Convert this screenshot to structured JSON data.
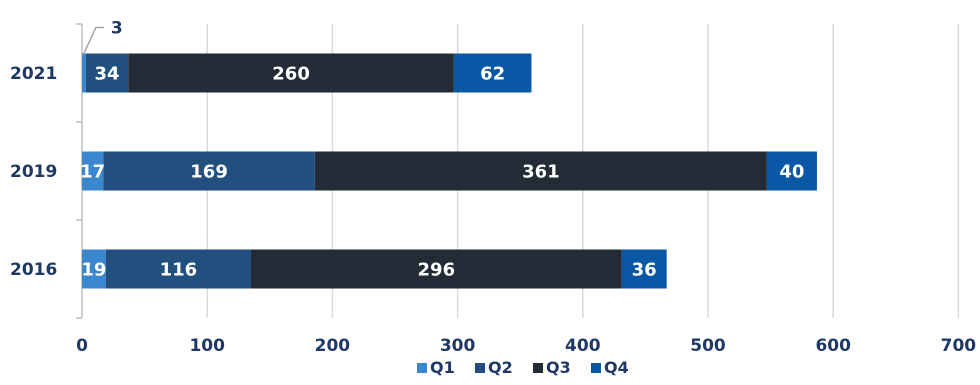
{
  "chart_data": {
    "type": "bar",
    "orientation": "horizontal",
    "stacked": true,
    "categories": [
      "2021",
      "2019",
      "2016"
    ],
    "series": [
      {
        "name": "Q1",
        "color": "#3a86cf",
        "values": [
          3,
          17,
          19
        ]
      },
      {
        "name": "Q2",
        "color": "#22507e",
        "values": [
          34,
          169,
          116
        ]
      },
      {
        "name": "Q3",
        "color": "#232b37",
        "values": [
          260,
          361,
          296
        ]
      },
      {
        "name": "Q4",
        "color": "#0a58a5",
        "values": [
          62,
          40,
          36
        ]
      }
    ],
    "xlim": [
      0,
      700
    ],
    "xticks": [
      0,
      100,
      200,
      300,
      400,
      500,
      600,
      700
    ],
    "grid": "vertical",
    "legend": "bottom",
    "title": "",
    "xlabel": "",
    "ylabel": ""
  }
}
